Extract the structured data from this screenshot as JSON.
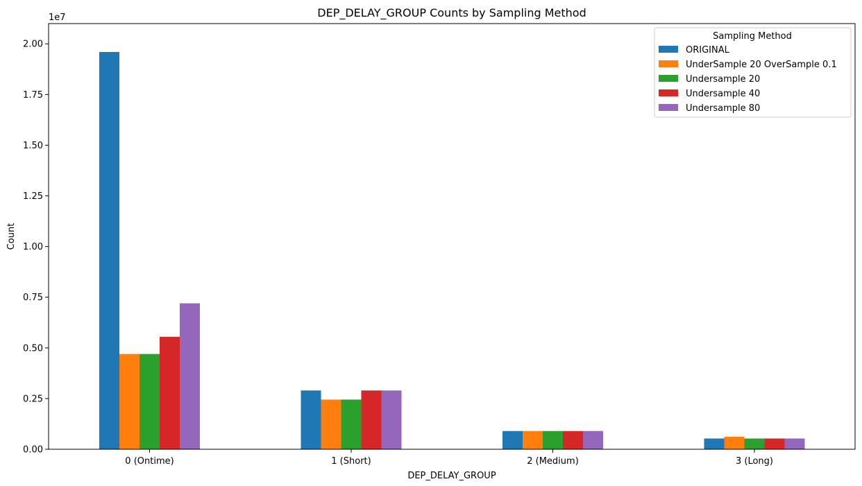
{
  "chart_data": {
    "type": "bar",
    "title": "DEP_DELAY_GROUP Counts by Sampling Method",
    "xlabel": "DEP_DELAY_GROUP",
    "ylabel": "Count",
    "y_offset_label": "1e7",
    "ylim": [
      0,
      2.1
    ],
    "yticks": [
      "0.00",
      "0.25",
      "0.50",
      "0.75",
      "1.00",
      "1.25",
      "1.50",
      "1.75",
      "2.00"
    ],
    "categories": [
      "0 (Ontime)",
      "1 (Short)",
      "2 (Medium)",
      "3 (Long)"
    ],
    "legend": {
      "title": "Sampling Method",
      "placement": "top-right"
    },
    "series": [
      {
        "name": "ORIGINAL",
        "color": "#1f77b4",
        "values": [
          1.96,
          0.29,
          0.09,
          0.053
        ]
      },
      {
        "name": "UnderSample 20 OverSample 0.1",
        "color": "#ff7f0e",
        "values": [
          0.47,
          0.245,
          0.09,
          0.062
        ]
      },
      {
        "name": "Undersample 20",
        "color": "#2ca02c",
        "values": [
          0.47,
          0.245,
          0.09,
          0.053
        ]
      },
      {
        "name": "Undersample 40",
        "color": "#d62728",
        "values": [
          0.555,
          0.29,
          0.09,
          0.053
        ]
      },
      {
        "name": "Undersample 80",
        "color": "#9467bd",
        "values": [
          0.72,
          0.29,
          0.09,
          0.053
        ]
      }
    ]
  }
}
